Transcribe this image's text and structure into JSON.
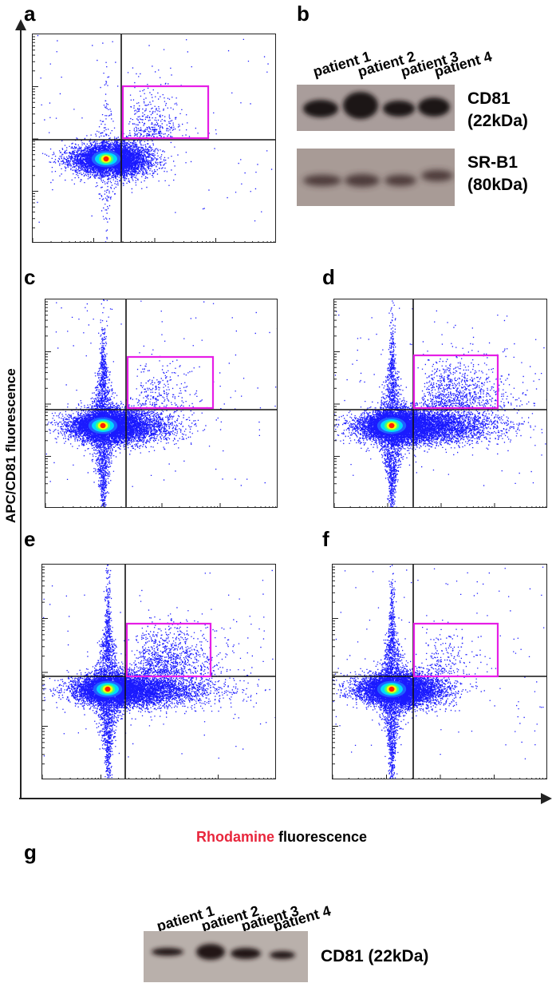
{
  "panels": {
    "a": "a",
    "b": "b",
    "c": "c",
    "d": "d",
    "e": "e",
    "f": "f",
    "g": "g"
  },
  "axes": {
    "y_label": "APC/CD81 fluorescence",
    "x_label_colored": "Rhodamine",
    "x_label_rest": " fluorescence",
    "x_label_color": "#e8263c"
  },
  "blot_b": {
    "lanes": [
      "patient 1",
      "patient 2",
      "patient 3",
      "patient 4"
    ],
    "band1_line1": "CD81",
    "band1_line2": "(22kDa)",
    "band2_line1": "SR-B1",
    "band2_line2": "(80kDa)"
  },
  "blot_g": {
    "lanes": [
      "patient 1",
      "patient 2",
      "patient 3",
      "patient 4"
    ],
    "band_label": "CD81 (22kDa)"
  },
  "colors": {
    "gate": "#e61ee6",
    "density": [
      "#0000ff",
      "#00ffff",
      "#ffff00",
      "#ff0000"
    ],
    "blot_bg": "#a79a93"
  }
}
